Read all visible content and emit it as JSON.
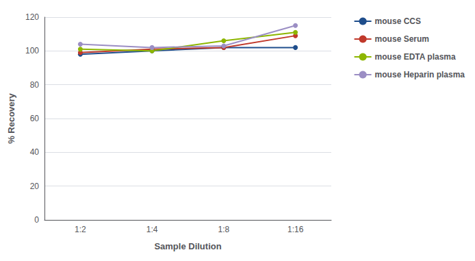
{
  "chart_data": {
    "type": "line",
    "categories": [
      "1:2",
      "1:4",
      "1:8",
      "1:16"
    ],
    "series": [
      {
        "name": "mouse CCS",
        "color": "#1f4e8c",
        "values": [
          98,
          100,
          102,
          102
        ]
      },
      {
        "name": "mouse Serum",
        "color": "#c0392b",
        "values": [
          99,
          101,
          102,
          109
        ]
      },
      {
        "name": "mouse EDTA plasma",
        "color": "#8db600",
        "values": [
          101,
          100,
          106,
          111
        ]
      },
      {
        "name": "mouse Heparin plasma",
        "color": "#9b8ec4",
        "values": [
          104,
          102,
          103,
          115
        ]
      }
    ],
    "xlabel": "Sample Dilution",
    "ylabel": "% Recovery",
    "ylim": [
      0,
      120
    ],
    "yticks": [
      0,
      20,
      40,
      60,
      80,
      100,
      120
    ],
    "grid": true,
    "legend": "right",
    "marker": "circle"
  }
}
